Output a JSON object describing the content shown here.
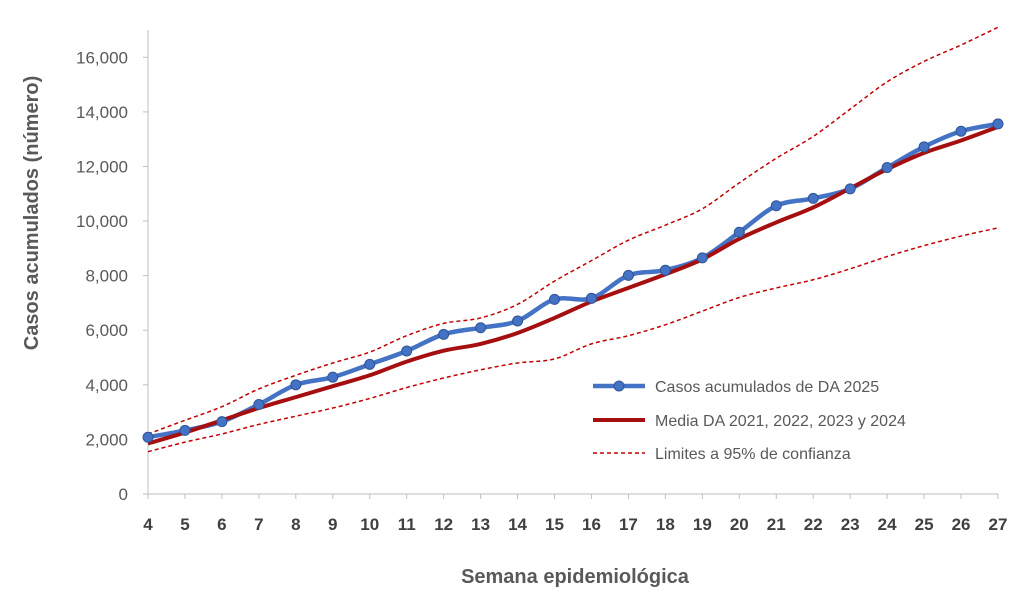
{
  "chart_data": {
    "type": "line",
    "xlabel": "Semana epidemiológica",
    "ylabel": "Casos acumulados  (número)",
    "x": [
      4,
      5,
      6,
      7,
      8,
      9,
      10,
      11,
      12,
      13,
      14,
      15,
      16,
      17,
      18,
      19,
      20,
      21,
      22,
      23,
      24,
      25,
      26,
      27
    ],
    "ylim": [
      0,
      17000
    ],
    "yticks": [
      0,
      2000,
      4000,
      6000,
      8000,
      10000,
      12000,
      14000,
      16000
    ],
    "ytick_labels": [
      "0",
      "2,000",
      "4,000",
      "6,000",
      "8,000",
      "10,000",
      "12,000",
      "14,000",
      "16,000"
    ],
    "grid": false,
    "legend_position": "bottom-right",
    "series": [
      {
        "name": "Casos acumulados de DA 2025",
        "color": "#4472C4",
        "values": [
          2080,
          2330,
          2650,
          3280,
          4000,
          4280,
          4750,
          5240,
          5850,
          6090,
          6340,
          7130,
          7170,
          8010,
          8200,
          8650,
          9590,
          10560,
          10830,
          11180,
          11960,
          12720,
          13290,
          13560
        ]
      },
      {
        "name": "Media DA 2021, 2022, 2023 y 2024",
        "color": "#A50F0F",
        "values": [
          1850,
          2250,
          2700,
          3150,
          3550,
          3950,
          4350,
          4850,
          5250,
          5500,
          5900,
          6450,
          7050,
          7550,
          8050,
          8600,
          9350,
          9950,
          10500,
          11200,
          11900,
          12500,
          12950,
          13450
        ]
      },
      {
        "name": "Limites a 95% de confianza",
        "color": "#C00000",
        "dashed": true,
        "values_upper": [
          2200,
          2700,
          3200,
          3850,
          4350,
          4800,
          5200,
          5800,
          6250,
          6450,
          6950,
          7800,
          8550,
          9300,
          9850,
          10450,
          11400,
          12300,
          13100,
          14100,
          15100,
          15850,
          16450,
          17100
        ],
        "values_lower": [
          1550,
          1900,
          2200,
          2550,
          2850,
          3150,
          3500,
          3900,
          4250,
          4550,
          4800,
          4950,
          5500,
          5800,
          6200,
          6700,
          7200,
          7550,
          7850,
          8250,
          8700,
          9100,
          9450,
          9750
        ]
      }
    ]
  }
}
